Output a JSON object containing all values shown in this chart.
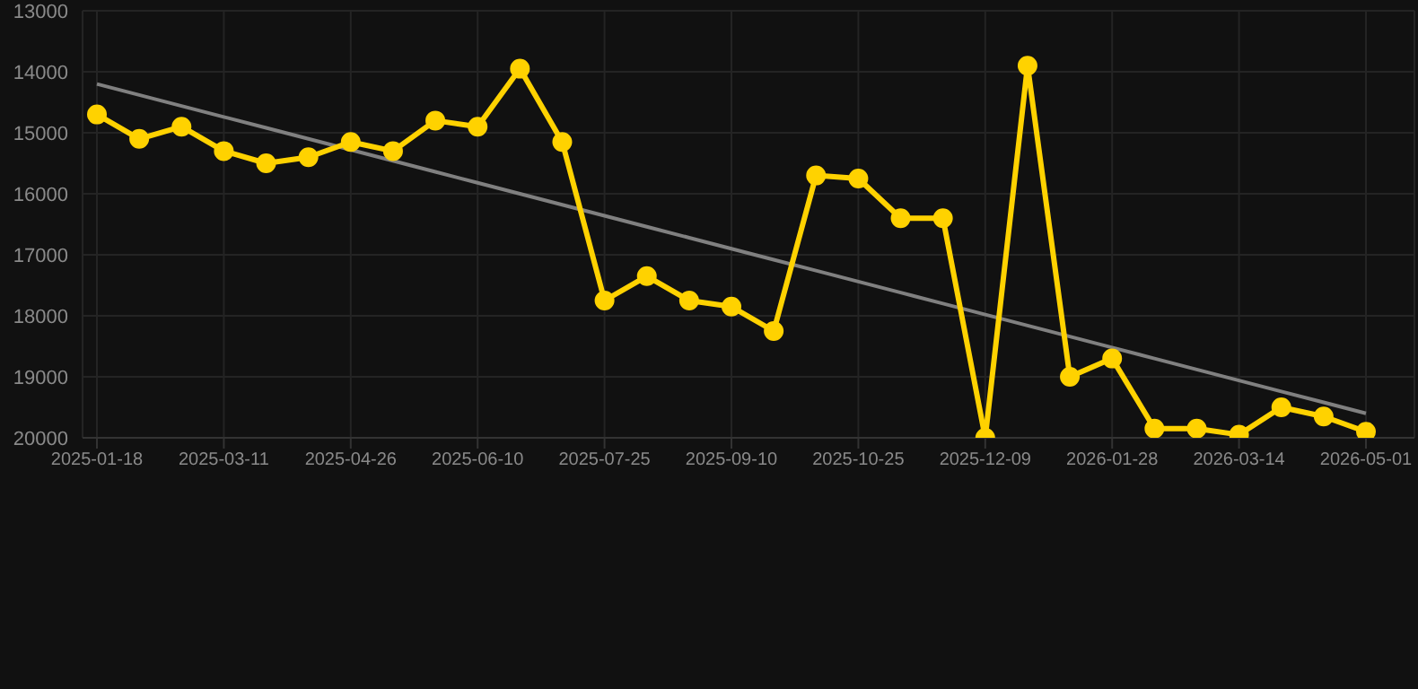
{
  "chart_data": {
    "type": "line",
    "categories": [
      "2025-01-18",
      null,
      null,
      "2025-03-11",
      null,
      null,
      "2025-04-26",
      null,
      null,
      "2025-06-10",
      null,
      null,
      "2025-07-25",
      null,
      null,
      "2025-09-10",
      null,
      null,
      "2025-10-25",
      null,
      null,
      "2025-12-09",
      null,
      null,
      "2026-01-28",
      null,
      null,
      "2026-03-14",
      null,
      null,
      "2026-05-01"
    ],
    "series": [
      {
        "color": "#ffd200",
        "marker": "circle",
        "values": [
          14700,
          15100,
          14900,
          15300,
          15500,
          15400,
          15150,
          15300,
          14800,
          14900,
          13950,
          15150,
          17750,
          17350,
          17750,
          17850,
          18250,
          15700,
          15750,
          16400,
          16400,
          20000,
          13900,
          19000,
          18700,
          19850,
          19850,
          19950,
          19500,
          19650,
          19900
        ]
      },
      {
        "type": "line",
        "color": "#808080",
        "marker": "none",
        "values": [
          14200,
          14380,
          14560,
          14740,
          14920,
          15100,
          15280,
          15460,
          15640,
          15820,
          16000,
          16180,
          16360,
          16540,
          16720,
          16900,
          17080,
          17260,
          17440,
          17620,
          17800,
          17980,
          18160,
          18340,
          18520,
          18700,
          18880,
          19060,
          19240,
          19420,
          19600
        ]
      }
    ],
    "ylim": [
      20000,
      13000
    ],
    "yticks": [
      13000,
      14000,
      15000,
      16000,
      17000,
      18000,
      19000,
      20000
    ],
    "grid": true,
    "legend": false,
    "line_style": "solid"
  }
}
